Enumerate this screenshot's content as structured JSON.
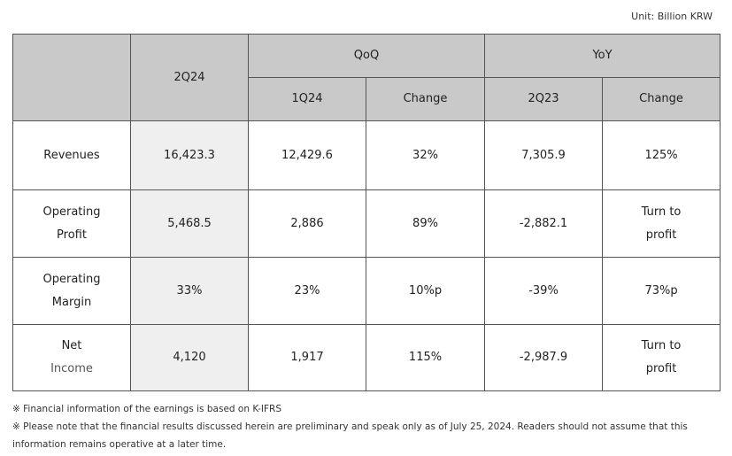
{
  "unit": "Unit: Billion KRW",
  "header": {
    "period": "2Q24",
    "qoq": "QoQ",
    "yoy": "YoY",
    "qoq_prev": "1Q24",
    "qoq_change": "Change",
    "yoy_prev": "2Q23",
    "yoy_change": "Change"
  },
  "rows": [
    {
      "label_line1": "Revenues",
      "label_line2": "",
      "current": "16,423.3",
      "q_prev": "12,429.6",
      "q_change": "32%",
      "y_prev": "7,305.9",
      "y_change_line1": "125%",
      "y_change_line2": ""
    },
    {
      "label_line1": "Operating",
      "label_line2": "Profit",
      "current": "5,468.5",
      "q_prev": "2,886",
      "q_change": "89%",
      "y_prev": "-2,882.1",
      "y_change_line1": "Turn to",
      "y_change_line2": "profit"
    },
    {
      "label_line1": "Operating",
      "label_line2": "Margin",
      "current": "33%",
      "q_prev": "23%",
      "q_change": "10%p",
      "y_prev": "-39%",
      "y_change_line1": "73%p",
      "y_change_line2": ""
    },
    {
      "label_line1": "Net",
      "label_line2": "Income",
      "current": "4,120",
      "q_prev": "1,917",
      "q_change": "115%",
      "y_prev": "-2,987.9",
      "y_change_line1": "Turn to",
      "y_change_line2": "profit"
    }
  ],
  "notes": [
    "※ Financial information of the earnings is based on K-IFRS",
    "※ Please note that the financial results discussed herein are preliminary and speak only as of July 25, 2024. Readers should not assume that this information remains operative at a later time."
  ]
}
